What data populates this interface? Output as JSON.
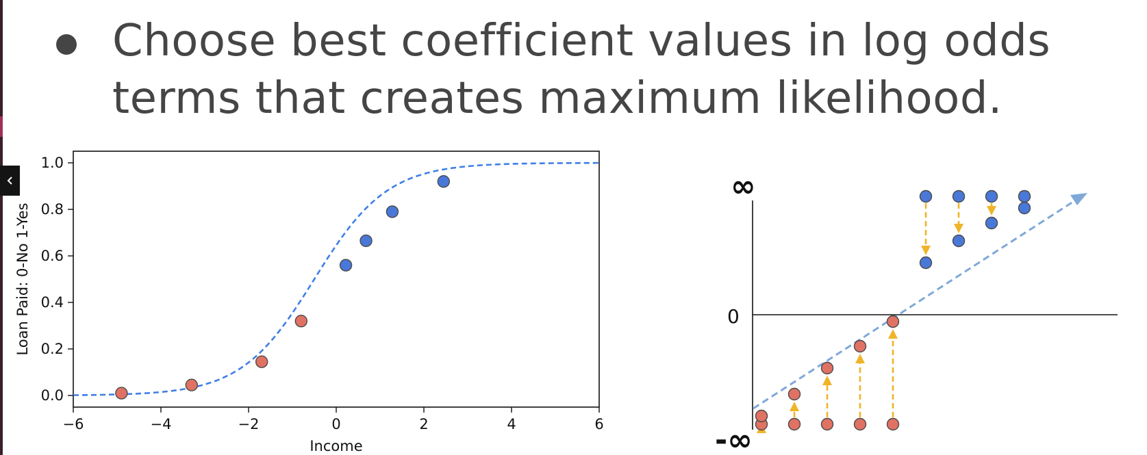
{
  "slide": {
    "title": "Choose best coefficient values in log odds terms that creates maximum likelihood.",
    "title_lines": [
      "Choose best coefficient values in log odds",
      "terms that creates maximum likelihood."
    ]
  },
  "sidebar": {
    "collapse_icon": "chevron-left-icon"
  },
  "colors": {
    "curve": "#3f7fe6",
    "blue_point": "#4a78d8",
    "red_point": "#e07264",
    "arrow": "#f0b429",
    "logodds_line": "#7fa8d8",
    "text": "#454545"
  },
  "chart_data": [
    {
      "type": "scatter",
      "title": "",
      "xlabel": "Income",
      "ylabel": "Loan Paid: 0-No 1-Yes",
      "xlim": [
        -6,
        6
      ],
      "ylim": [
        -0.05,
        1.05
      ],
      "xticks": [
        -6,
        -4,
        -2,
        0,
        2,
        4,
        6
      ],
      "xtick_labels": [
        "−6",
        "−4",
        "−2",
        "0",
        "2",
        "4",
        "6"
      ],
      "yticks": [
        0.0,
        0.2,
        0.4,
        0.6,
        0.8,
        1.0
      ],
      "ytick_labels": [
        "0.0",
        "0.2",
        "0.4",
        "0.6",
        "0.8",
        "1.0"
      ],
      "curve": {
        "style": "dashed",
        "function": "logistic",
        "k": 1.2,
        "x0": -0.5
      },
      "points": [
        {
          "x": -4.9,
          "y": 0.01,
          "class": "red"
        },
        {
          "x": -3.3,
          "y": 0.045,
          "class": "red"
        },
        {
          "x": -1.7,
          "y": 0.145,
          "class": "red"
        },
        {
          "x": -0.8,
          "y": 0.32,
          "class": "red"
        },
        {
          "x": 0.22,
          "y": 0.56,
          "class": "blue"
        },
        {
          "x": 0.68,
          "y": 0.665,
          "class": "blue"
        },
        {
          "x": 1.28,
          "y": 0.79,
          "class": "blue"
        },
        {
          "x": 2.45,
          "y": 0.92,
          "class": "blue"
        }
      ],
      "grid": false,
      "legend": "none"
    },
    {
      "type": "scatter",
      "title": "",
      "xlabel": "",
      "ylabel": "",
      "ytick_labels": [
        "∞",
        "0",
        "-∞"
      ],
      "line": {
        "style": "dashed",
        "arrow": true
      },
      "points": [
        {
          "x": 1,
          "y_projected": -3.7,
          "class": "red"
        },
        {
          "x": 2,
          "y_projected": -2.9,
          "class": "red"
        },
        {
          "x": 3,
          "y_projected": -1.95,
          "class": "red"
        },
        {
          "x": 4,
          "y_projected": -1.15,
          "class": "red"
        },
        {
          "x": 5,
          "y_projected": -0.25,
          "class": "red"
        },
        {
          "x": 6,
          "y_projected": 1.9,
          "class": "blue"
        },
        {
          "x": 7,
          "y_projected": 2.7,
          "class": "blue"
        },
        {
          "x": 8,
          "y_projected": 3.35,
          "class": "blue"
        },
        {
          "x": 9,
          "y_projected": 3.9,
          "class": "blue"
        }
      ]
    }
  ]
}
